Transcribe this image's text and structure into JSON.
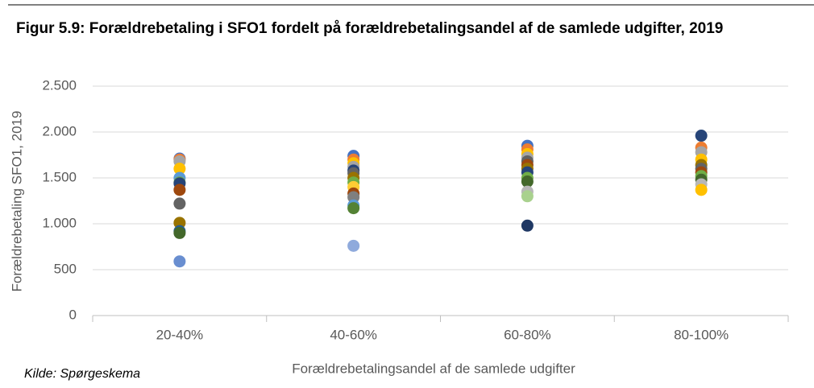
{
  "chart_data": {
    "type": "strip",
    "title": "Figur 5.9: Forældrebetaling i SFO1 fordelt på forældrebetalingsandel af de samlede udgifter, 2019",
    "y_label": "Forældrebetaling SFO1, 2019",
    "x_label": "Forældrebetalingsandel af de samlede udgifter",
    "source": "Kilde: Spørgeskema",
    "categories": [
      "20-40%",
      "40-60%",
      "60-80%",
      "80-100%"
    ],
    "values": [
      [
        1710,
        1700,
        1680,
        1600,
        1500,
        1450,
        1440,
        1370,
        1220,
        1010,
        920,
        900,
        590
      ],
      [
        1740,
        1700,
        1660,
        1620,
        1580,
        1550,
        1500,
        1450,
        1400,
        1330,
        1290,
        1200,
        1170,
        760
      ],
      [
        1850,
        1810,
        1760,
        1720,
        1680,
        1640,
        1600,
        1560,
        1500,
        1460,
        1350,
        1300,
        980
      ],
      [
        1960,
        1830,
        1780,
        1700,
        1640,
        1600,
        1560,
        1520,
        1480,
        1430,
        1370
      ]
    ],
    "colors": [
      [
        "#4472c4",
        "#ed7d31",
        "#a5a5a5",
        "#ffc000",
        "#5b9bd5",
        "#70ad47",
        "#264478",
        "#9e480e",
        "#636363",
        "#997300",
        "#255e91",
        "#43682b",
        "#698ed0"
      ],
      [
        "#4472c4",
        "#ed7d31",
        "#ffc000",
        "#a5a5a5",
        "#264478",
        "#636363",
        "#997300",
        "#70ad47",
        "#ffcd33",
        "#9e480e",
        "#7f7f7f",
        "#5b9bd5",
        "#548235",
        "#8faadc"
      ],
      [
        "#4472c4",
        "#ed7d31",
        "#ffc000",
        "#a5a5a5",
        "#636363",
        "#9e480e",
        "#997300",
        "#264478",
        "#70ad47",
        "#43682b",
        "#b7b7b7",
        "#a9d18e",
        "#1f3864"
      ],
      [
        "#264478",
        "#ed7d31",
        "#a5a5a5",
        "#ffc000",
        "#997300",
        "#636363",
        "#9e480e",
        "#70ad47",
        "#43682b",
        "#b7b7b7",
        "#ffc000"
      ]
    ],
    "ylim": [
      0,
      2500
    ],
    "yticks": [
      0,
      500,
      {
        "value": 1000,
        "label": "1.000"
      },
      {
        "value": 1500,
        "label": "1.500"
      },
      {
        "value": 2000,
        "label": "2.000"
      },
      {
        "value": 2500,
        "label": "2.500"
      }
    ],
    "grid": true
  }
}
